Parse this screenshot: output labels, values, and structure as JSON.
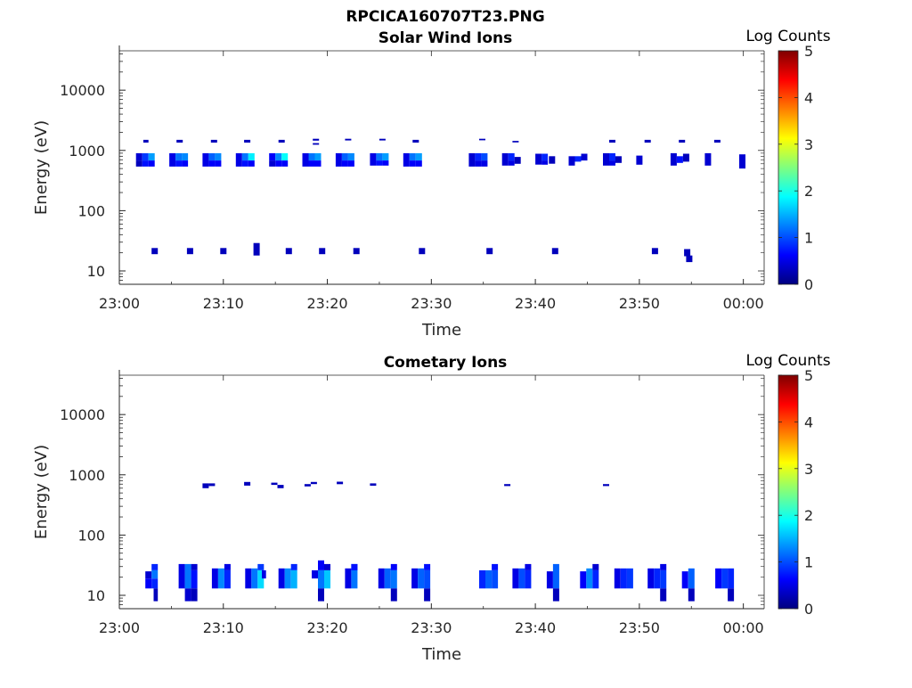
{
  "figure": {
    "title": "RPCICA160707T23.PNG"
  },
  "colormap": [
    "#00007f",
    "#0000ff",
    "#007fff",
    "#00ffff",
    "#7fff7f",
    "#ffff00",
    "#ff7f00",
    "#ff0000",
    "#7f0000"
  ],
  "chart_data": [
    {
      "type": "heatmap",
      "title": "Solar Wind Ions",
      "xlabel": "Time",
      "ylabel": "Energy (eV)",
      "x_unit": "minutes after 23:00",
      "xlim": [
        0,
        62
      ],
      "x_ticks": [
        0,
        10,
        20,
        30,
        40,
        50,
        60
      ],
      "x_tick_labels": [
        "23:00",
        "23:10",
        "23:20",
        "23:30",
        "23:40",
        "23:50",
        "00:00"
      ],
      "y_scale": "log",
      "ylim": [
        6,
        45000
      ],
      "y_ticks": [
        10,
        100,
        1000,
        10000
      ],
      "y_tick_labels": [
        "10",
        "100",
        "1000",
        "10000"
      ],
      "colorbar": {
        "label": "Log Counts",
        "min": 0,
        "max": 5,
        "ticks": [
          "0",
          "1",
          "2",
          "3",
          "4",
          "5"
        ]
      },
      "cells": [
        [
          2.3,
          0.5,
          1500,
          1350,
          0.3
        ],
        [
          5.5,
          0.6,
          1500,
          1350,
          0.3
        ],
        [
          8.8,
          0.6,
          1500,
          1350,
          0.3
        ],
        [
          12,
          0.6,
          1500,
          1350,
          0.3
        ],
        [
          15.3,
          0.6,
          1500,
          1350,
          0.3
        ],
        [
          18.6,
          0.6,
          1560,
          1450,
          0.3
        ],
        [
          18.6,
          0.6,
          1320,
          1240,
          0.3
        ],
        [
          21.7,
          0.6,
          1560,
          1460,
          0.3
        ],
        [
          25,
          0.6,
          1560,
          1460,
          0.3
        ],
        [
          28.2,
          0.6,
          1500,
          1350,
          0.3
        ],
        [
          34.6,
          0.6,
          1560,
          1470,
          0.3
        ],
        [
          37.8,
          0.6,
          1440,
          1360,
          0.3
        ],
        [
          47.1,
          0.6,
          1500,
          1350,
          0.3
        ],
        [
          50.5,
          0.6,
          1500,
          1350,
          0.3
        ],
        [
          53.8,
          0.6,
          1500,
          1350,
          0.3
        ],
        [
          57.2,
          0.6,
          1500,
          1350,
          0.3
        ],
        [
          1.6,
          0.6,
          900,
          680,
          0.4
        ],
        [
          1.6,
          0.6,
          680,
          540,
          0.3
        ],
        [
          2.2,
          0.6,
          900,
          680,
          0.9
        ],
        [
          2.8,
          0.6,
          900,
          680,
          1.4
        ],
        [
          2.2,
          0.6,
          680,
          540,
          0.7
        ],
        [
          2.8,
          0.6,
          680,
          540,
          0.6
        ],
        [
          4.8,
          0.6,
          900,
          540,
          0.5
        ],
        [
          5.4,
          0.6,
          900,
          680,
          1.2
        ],
        [
          5.4,
          0.6,
          680,
          540,
          0.7
        ],
        [
          6,
          0.6,
          900,
          680,
          1.3
        ],
        [
          6,
          0.6,
          680,
          540,
          0.6
        ],
        [
          8,
          0.6,
          900,
          540,
          0.5
        ],
        [
          8.6,
          0.6,
          900,
          680,
          1.1
        ],
        [
          8.6,
          0.6,
          680,
          540,
          0.6
        ],
        [
          9.2,
          0.6,
          900,
          680,
          1.3
        ],
        [
          9.2,
          0.6,
          680,
          540,
          0.6
        ],
        [
          11.2,
          0.6,
          900,
          540,
          0.5
        ],
        [
          11.8,
          0.6,
          900,
          680,
          1.2
        ],
        [
          11.8,
          0.6,
          680,
          540,
          0.7
        ],
        [
          12.4,
          0.6,
          900,
          680,
          1.8
        ],
        [
          12.4,
          0.6,
          680,
          540,
          0.6
        ],
        [
          14.4,
          0.6,
          900,
          680,
          0.6
        ],
        [
          14.4,
          0.6,
          680,
          540,
          0.4
        ],
        [
          15,
          0.6,
          900,
          680,
          1.3
        ],
        [
          15,
          0.6,
          680,
          540,
          0.6
        ],
        [
          15.6,
          0.6,
          900,
          680,
          1.9
        ],
        [
          15.6,
          0.6,
          680,
          540,
          0.6
        ],
        [
          17.6,
          0.6,
          900,
          540,
          0.5
        ],
        [
          18.2,
          0.6,
          900,
          680,
          1.2
        ],
        [
          18.2,
          0.6,
          680,
          540,
          0.6
        ],
        [
          18.8,
          0.6,
          900,
          680,
          1.4
        ],
        [
          18.8,
          0.6,
          680,
          540,
          0.6
        ],
        [
          20.8,
          0.6,
          900,
          540,
          0.5
        ],
        [
          21.4,
          0.6,
          900,
          680,
          1.1
        ],
        [
          21.4,
          0.6,
          680,
          540,
          0.6
        ],
        [
          22,
          0.6,
          900,
          680,
          1.3
        ],
        [
          22,
          0.6,
          680,
          540,
          0.6
        ],
        [
          24.1,
          0.6,
          900,
          560,
          0.5
        ],
        [
          24.7,
          0.6,
          900,
          680,
          1.2
        ],
        [
          24.7,
          0.6,
          680,
          560,
          0.7
        ],
        [
          25.3,
          0.6,
          900,
          680,
          1.4
        ],
        [
          25.3,
          0.6,
          680,
          560,
          0.6
        ],
        [
          27.3,
          0.6,
          900,
          540,
          0.5
        ],
        [
          27.9,
          0.6,
          900,
          680,
          1.2
        ],
        [
          27.9,
          0.6,
          680,
          540,
          0.6
        ],
        [
          28.5,
          0.6,
          900,
          680,
          1.4
        ],
        [
          28.5,
          0.6,
          680,
          540,
          0.6
        ],
        [
          33.6,
          0.6,
          900,
          540,
          0.4
        ],
        [
          34.2,
          0.6,
          900,
          680,
          0.8
        ],
        [
          34.2,
          0.6,
          680,
          540,
          0.5
        ],
        [
          34.8,
          0.6,
          900,
          680,
          1
        ],
        [
          34.8,
          0.6,
          680,
          540,
          0.5
        ],
        [
          36.8,
          0.6,
          900,
          560,
          0.4
        ],
        [
          37.4,
          0.6,
          900,
          680,
          0.8
        ],
        [
          37.4,
          0.6,
          680,
          560,
          0.5
        ],
        [
          38,
          0.6,
          780,
          600,
          0.3
        ],
        [
          40,
          0.6,
          880,
          580,
          0.4
        ],
        [
          40.6,
          0.6,
          880,
          680,
          0.8
        ],
        [
          40.6,
          0.6,
          680,
          580,
          0.5
        ],
        [
          41.3,
          0.6,
          800,
          600,
          0.3
        ],
        [
          43.2,
          0.6,
          800,
          560,
          0.4
        ],
        [
          43.8,
          0.6,
          800,
          650,
          0.8
        ],
        [
          44.4,
          0.6,
          880,
          680,
          0.4
        ],
        [
          46.5,
          0.6,
          900,
          560,
          0.4
        ],
        [
          47.1,
          0.6,
          900,
          680,
          0.8
        ],
        [
          47.1,
          0.6,
          680,
          560,
          0.5
        ],
        [
          47.7,
          0.6,
          800,
          620,
          0.3
        ],
        [
          49.7,
          0.6,
          820,
          580,
          0.4
        ],
        [
          53,
          0.6,
          900,
          560,
          0.4
        ],
        [
          53.6,
          0.6,
          800,
          620,
          0.7
        ],
        [
          54.2,
          0.6,
          880,
          650,
          0.3
        ],
        [
          56.3,
          0.6,
          900,
          560,
          0.4
        ],
        [
          59.6,
          0.6,
          860,
          500,
          0.4
        ],
        [
          3.1,
          0.6,
          24,
          19,
          0.3
        ],
        [
          6.5,
          0.6,
          24,
          19,
          0.3
        ],
        [
          9.7,
          0.6,
          24,
          19,
          0.3
        ],
        [
          12.9,
          0.6,
          29,
          18,
          0.3
        ],
        [
          16,
          0.6,
          24,
          19,
          0.3
        ],
        [
          19.2,
          0.6,
          24,
          19,
          0.3
        ],
        [
          22.5,
          0.6,
          24,
          19,
          0.3
        ],
        [
          28.8,
          0.6,
          24,
          19,
          0.3
        ],
        [
          35.3,
          0.6,
          24,
          19,
          0.3
        ],
        [
          41.6,
          0.6,
          24,
          19,
          0.3
        ],
        [
          51.2,
          0.6,
          24,
          19,
          0.3
        ],
        [
          54.3,
          0.6,
          23,
          17.5,
          0.3
        ],
        [
          54.5,
          0.6,
          18,
          14,
          0.3
        ]
      ]
    },
    {
      "type": "heatmap",
      "title": "Cometary Ions",
      "xlabel": "Time",
      "ylabel": "Energy (eV)",
      "x_unit": "minutes after 23:00",
      "xlim": [
        0,
        62
      ],
      "x_ticks": [
        0,
        10,
        20,
        30,
        40,
        50,
        60
      ],
      "x_tick_labels": [
        "23:00",
        "23:10",
        "23:20",
        "23:30",
        "23:40",
        "23:50",
        "00:00"
      ],
      "y_scale": "log",
      "ylim": [
        6,
        45000
      ],
      "y_ticks": [
        10,
        100,
        1000,
        10000
      ],
      "y_tick_labels": [
        "10",
        "100",
        "1000",
        "10000"
      ],
      "colorbar": {
        "label": "Log Counts",
        "min": 0,
        "max": 5,
        "ticks": [
          "0",
          "1",
          "2",
          "3",
          "4",
          "5"
        ]
      },
      "cells": [
        [
          8,
          0.6,
          720,
          600,
          0.3
        ],
        [
          8.6,
          0.6,
          720,
          650,
          0.3
        ],
        [
          12,
          0.6,
          760,
          660,
          0.3
        ],
        [
          14.6,
          0.6,
          740,
          680,
          0.3
        ],
        [
          15.2,
          0.6,
          680,
          600,
          0.3
        ],
        [
          17.8,
          0.6,
          700,
          640,
          0.3
        ],
        [
          18.4,
          0.6,
          760,
          700,
          0.3
        ],
        [
          20.9,
          0.6,
          770,
          700,
          0.3
        ],
        [
          24.1,
          0.6,
          720,
          660,
          0.3
        ],
        [
          37,
          0.6,
          700,
          650,
          0.3
        ],
        [
          46.5,
          0.6,
          700,
          650,
          0.3
        ],
        [
          2.5,
          0.6,
          25,
          19,
          0.4
        ],
        [
          2.5,
          0.6,
          19,
          13,
          0.6
        ],
        [
          3.1,
          0.6,
          33,
          26,
          0.8
        ],
        [
          3.1,
          0.6,
          26,
          19,
          1.2
        ],
        [
          3.1,
          0.6,
          19,
          13,
          0.8
        ],
        [
          3.3,
          0.4,
          13,
          8,
          0.3
        ],
        [
          5.7,
          0.6,
          33,
          13,
          0.5
        ],
        [
          6.3,
          0.6,
          33,
          13,
          1.2
        ],
        [
          6.3,
          0.6,
          13,
          8,
          0.4
        ],
        [
          6.9,
          0.6,
          33,
          26,
          0.4
        ],
        [
          6.9,
          0.6,
          26,
          13,
          0.7
        ],
        [
          6.9,
          0.6,
          13,
          8,
          0.3
        ],
        [
          8.9,
          0.6,
          28,
          13,
          0.5
        ],
        [
          9.5,
          0.6,
          28,
          13,
          1.3
        ],
        [
          10.1,
          0.6,
          33,
          26,
          0.5
        ],
        [
          10.1,
          0.6,
          26,
          13,
          0.8
        ],
        [
          12.1,
          0.6,
          28,
          13,
          0.5
        ],
        [
          12.7,
          0.6,
          28,
          13,
          1.2
        ],
        [
          13.3,
          0.6,
          33,
          26,
          0.9
        ],
        [
          13.3,
          0.6,
          26,
          13,
          1.7
        ],
        [
          13.7,
          0.4,
          26,
          19,
          0.5
        ],
        [
          15.3,
          0.6,
          28,
          13,
          0.5
        ],
        [
          15.9,
          0.6,
          28,
          13,
          1.3
        ],
        [
          16.5,
          0.6,
          33,
          26,
          0.8
        ],
        [
          16.5,
          0.6,
          26,
          13,
          1.5
        ],
        [
          18.5,
          0.6,
          26,
          19,
          0.5
        ],
        [
          19.1,
          0.6,
          38,
          26,
          0.6
        ],
        [
          19.1,
          0.6,
          26,
          13,
          1.2
        ],
        [
          19.1,
          0.6,
          13,
          8,
          0.3
        ],
        [
          19.7,
          0.6,
          26,
          13,
          1.6
        ],
        [
          19.7,
          0.6,
          33,
          26,
          0.4
        ],
        [
          21.7,
          0.6,
          28,
          13,
          0.5
        ],
        [
          22.3,
          0.6,
          33,
          13,
          1.2
        ],
        [
          22.3,
          0.6,
          33,
          26,
          0.7
        ],
        [
          24.9,
          0.6,
          28,
          13,
          0.5
        ],
        [
          25.5,
          0.6,
          28,
          13,
          1.1
        ],
        [
          26.1,
          0.6,
          33,
          26,
          0.6
        ],
        [
          26.1,
          0.6,
          26,
          13,
          1.2
        ],
        [
          26.1,
          0.6,
          13,
          8,
          0.3
        ],
        [
          28.1,
          0.6,
          28,
          13,
          0.5
        ],
        [
          28.7,
          0.6,
          28,
          13,
          1.1
        ],
        [
          29.3,
          0.6,
          33,
          26,
          0.7
        ],
        [
          29.3,
          0.6,
          26,
          13,
          1
        ],
        [
          29.3,
          0.6,
          13,
          8,
          0.3
        ],
        [
          34.6,
          0.6,
          26,
          13,
          0.8
        ],
        [
          35.2,
          0.6,
          26,
          13,
          1.1
        ],
        [
          35.8,
          0.6,
          33,
          26,
          0.7
        ],
        [
          35.8,
          0.6,
          26,
          13,
          1
        ],
        [
          37.8,
          0.6,
          28,
          13,
          0.5
        ],
        [
          38.4,
          0.6,
          28,
          13,
          1
        ],
        [
          39,
          0.6,
          33,
          26,
          0.5
        ],
        [
          39,
          0.6,
          26,
          13,
          0.8
        ],
        [
          41.1,
          0.6,
          25,
          13,
          0.5
        ],
        [
          41.7,
          0.6,
          33,
          13,
          1.1
        ],
        [
          41.7,
          0.6,
          13,
          8,
          0.3
        ],
        [
          44.3,
          0.6,
          25,
          13,
          0.6
        ],
        [
          44.9,
          0.6,
          28,
          13,
          1.3
        ],
        [
          45.5,
          0.6,
          33,
          26,
          0.4
        ],
        [
          45.5,
          0.6,
          26,
          13,
          0.8
        ],
        [
          47.6,
          0.6,
          28,
          13,
          0.5
        ],
        [
          48.2,
          0.6,
          28,
          13,
          0.8
        ],
        [
          48.8,
          0.6,
          28,
          13,
          0.9
        ],
        [
          50.8,
          0.6,
          28,
          13,
          0.5
        ],
        [
          51.4,
          0.6,
          28,
          13,
          0.8
        ],
        [
          52,
          0.6,
          33,
          26,
          0.5
        ],
        [
          52,
          0.6,
          26,
          13,
          0.9
        ],
        [
          52,
          0.6,
          13,
          8,
          0.3
        ],
        [
          54.1,
          0.6,
          25,
          13,
          0.6
        ],
        [
          54.7,
          0.6,
          28,
          13,
          1.1
        ],
        [
          54.7,
          0.6,
          13,
          8,
          0.3
        ],
        [
          57.3,
          0.6,
          28,
          13,
          0.6
        ],
        [
          57.9,
          0.6,
          28,
          13,
          0.9
        ],
        [
          58.5,
          0.6,
          28,
          13,
          0.8
        ],
        [
          58.5,
          0.6,
          13,
          8,
          0.3
        ]
      ]
    }
  ]
}
